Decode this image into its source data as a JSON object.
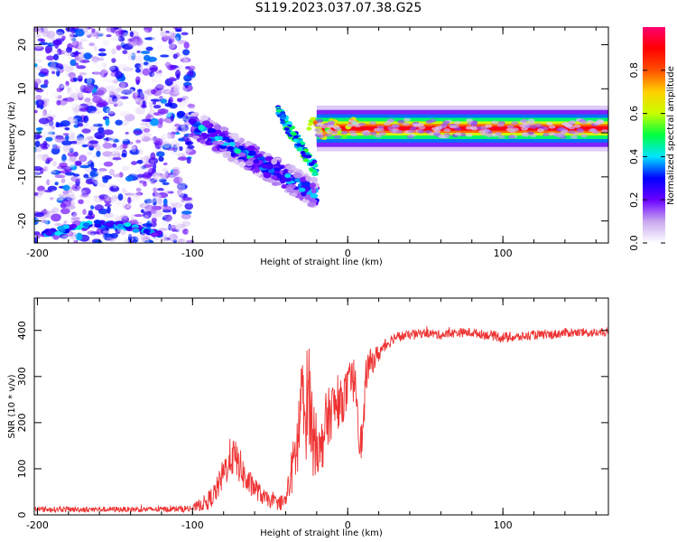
{
  "title": "S119.2023.037.07.38.G25",
  "chart_data": [
    {
      "type": "heatmap",
      "xlabel": "Height of straight line (km)",
      "ylabel": "Frequency (Hz)",
      "xlim": [
        -202,
        168
      ],
      "ylim": [
        -25,
        24
      ],
      "xticks": [
        "-200",
        "-100",
        "0",
        "100"
      ],
      "yticks": [
        "-20",
        "-10",
        "0",
        "10",
        "20"
      ],
      "colorbar": {
        "label": "Normalized spectral amplitude",
        "range": [
          0,
          1
        ],
        "ticks": [
          "0.0",
          "0.2",
          "0.4",
          "0.6",
          "0.8"
        ],
        "colors": [
          "#ffffff",
          "#c9a8f0",
          "#6a00ff",
          "#0000ff",
          "#00e5ff",
          "#00ff40",
          "#c8ff00",
          "#ffd000",
          "#ff5000",
          "#ff0000",
          "#ff0070"
        ]
      },
      "features": [
        {
          "name": "",
          "x_range": [
            -202,
            -100
          ],
          "frequency": "broadband noise",
          "amplitude": 0.2
        },
        {
          "name": "",
          "x_range": [
            -100,
            -20
          ],
          "frequency": [
            2,
            -14
          ],
          "amplitude": 0.5
        },
        {
          "name": "",
          "x_range": [
            -20,
            168
          ],
          "frequency": 1,
          "amplitude": 0.9
        }
      ],
      "grid": false
    },
    {
      "type": "line",
      "xlabel": "Height of straight line (km)",
      "ylabel": "SNR (10 * v/v)",
      "xlim": [
        -202,
        168
      ],
      "ylim": [
        0,
        470
      ],
      "xticks": [
        "-200",
        "-100",
        "0",
        "100"
      ],
      "yticks": [
        "0",
        "100",
        "200",
        "300",
        "400"
      ],
      "color": "#ee3333",
      "series": [
        {
          "name": "",
          "x": [
            -202,
            -180,
            -150,
            -120,
            -100,
            -90,
            -85,
            -80,
            -75,
            -70,
            -65,
            -60,
            -55,
            -50,
            -45,
            -40,
            -35,
            -32,
            -30,
            -28,
            -25,
            -22,
            -20,
            -18,
            -15,
            -10,
            -5,
            0,
            5,
            8,
            10,
            12,
            15,
            20,
            25,
            30,
            40,
            50,
            60,
            70,
            80,
            90,
            100,
            110,
            120,
            130,
            140,
            150,
            160,
            168
          ],
          "y": [
            12,
            12,
            12,
            12,
            14,
            30,
            50,
            90,
            130,
            110,
            70,
            60,
            40,
            30,
            25,
            30,
            110,
            160,
            250,
            200,
            280,
            150,
            190,
            120,
            190,
            230,
            240,
            270,
            300,
            150,
            180,
            310,
            330,
            350,
            370,
            385,
            390,
            395,
            390,
            395,
            395,
            390,
            385,
            385,
            390,
            390,
            395,
            395,
            395,
            395
          ],
          "noise": [
            6,
            6,
            6,
            6,
            8,
            20,
            25,
            35,
            45,
            40,
            30,
            25,
            18,
            15,
            15,
            20,
            60,
            90,
            120,
            110,
            120,
            80,
            90,
            60,
            70,
            60,
            50,
            50,
            50,
            40,
            50,
            40,
            30,
            20,
            15,
            12,
            10,
            10,
            10,
            10,
            10,
            10,
            12,
            10,
            10,
            10,
            10,
            10,
            10,
            10
          ]
        }
      ],
      "grid": false
    }
  ]
}
